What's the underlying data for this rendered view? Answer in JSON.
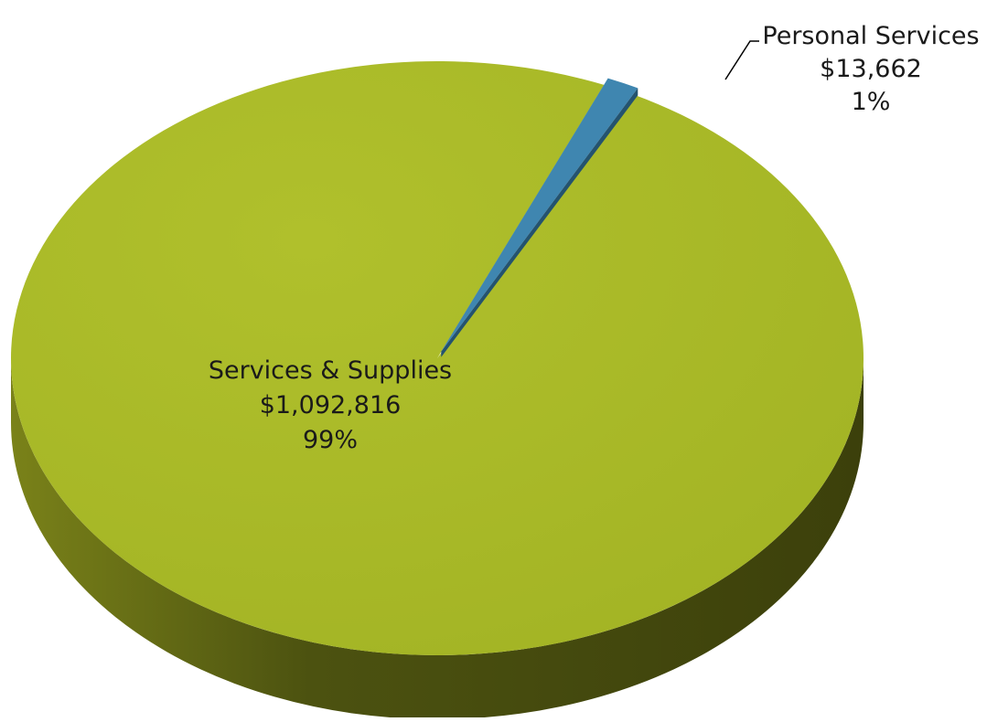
{
  "chart_data": {
    "type": "pie",
    "title": "",
    "slices": [
      {
        "label": "Services & Supplies",
        "value": 1092816,
        "value_text": "$1,092,816",
        "percent_text": "99%",
        "color": "#a8b927",
        "side_color": "#5d6312"
      },
      {
        "label": "Personal Services",
        "value": 13662,
        "value_text": "$13,662",
        "percent_text": "1%",
        "color": "#3f86b0",
        "side_color": "#24536f"
      }
    ],
    "style": "3d",
    "legend": "none"
  }
}
